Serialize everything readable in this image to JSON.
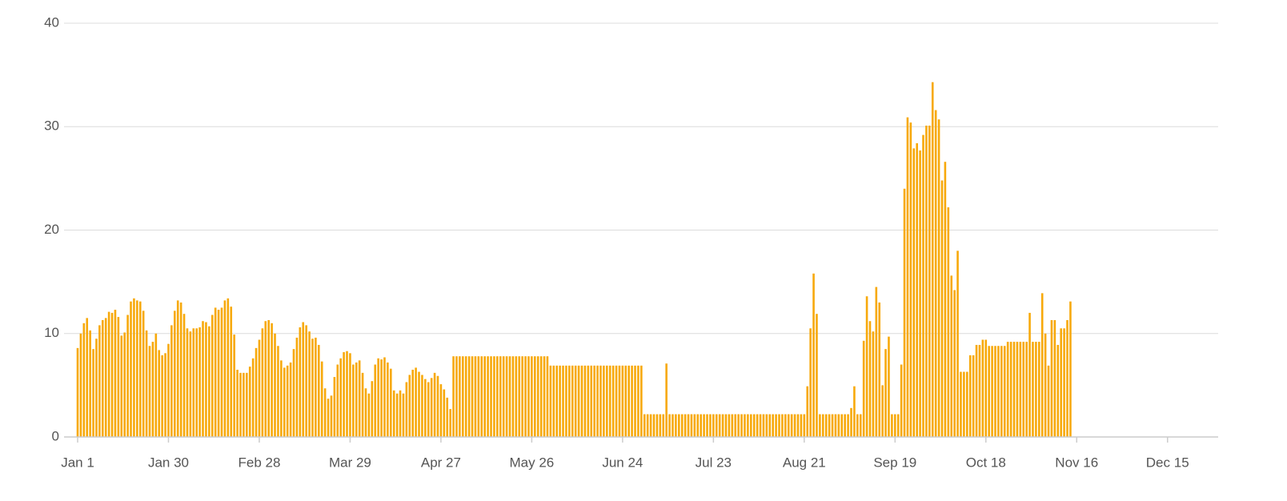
{
  "chart_data": {
    "type": "bar",
    "color": "#f7a90b",
    "grid": true,
    "ylim": [
      0,
      40
    ],
    "yticks": [
      0,
      10,
      20,
      30,
      40
    ],
    "categories": [
      "Jan 1",
      null,
      null,
      null,
      null,
      null,
      null,
      null,
      null,
      null,
      null,
      null,
      null,
      null,
      null,
      null,
      null,
      null,
      null,
      null,
      null,
      null,
      null,
      null,
      null,
      null,
      null,
      null,
      null,
      "Jan 30",
      null,
      null,
      null,
      null,
      null,
      null,
      null,
      null,
      null,
      null,
      null,
      null,
      null,
      null,
      null,
      null,
      null,
      null,
      null,
      null,
      null,
      null,
      null,
      null,
      null,
      null,
      null,
      null,
      "Feb 28",
      null,
      null,
      null,
      null,
      null,
      null,
      null,
      null,
      null,
      null,
      null,
      null,
      null,
      null,
      null,
      null,
      null,
      null,
      null,
      null,
      null,
      null,
      null,
      null,
      null,
      null,
      null,
      null,
      "Mar 29",
      null,
      null,
      null,
      null,
      null,
      null,
      null,
      null,
      null,
      null,
      null,
      null,
      null,
      null,
      null,
      null,
      null,
      null,
      null,
      null,
      null,
      null,
      null,
      null,
      null,
      null,
      null,
      null,
      "Apr 27",
      null,
      null,
      null,
      null,
      null,
      null,
      null,
      null,
      null,
      null,
      null,
      null,
      null,
      null,
      null,
      null,
      null,
      null,
      null,
      null,
      null,
      null,
      null,
      null,
      null,
      null,
      null,
      null,
      "May 26",
      null,
      null,
      null,
      null,
      null,
      null,
      null,
      null,
      null,
      null,
      null,
      null,
      null,
      null,
      null,
      null,
      null,
      null,
      null,
      null,
      null,
      null,
      null,
      null,
      null,
      null,
      null,
      null,
      "Jun 24",
      null,
      null,
      null,
      null,
      null,
      null,
      null,
      null,
      null,
      null,
      null,
      null,
      null,
      null,
      null,
      null,
      null,
      null,
      null,
      null,
      null,
      null,
      null,
      null,
      null,
      null,
      null,
      null,
      "Jul 23",
      null,
      null,
      null,
      null,
      null,
      null,
      null,
      null,
      null,
      null,
      null,
      null,
      null,
      null,
      null,
      null,
      null,
      null,
      null,
      null,
      null,
      null,
      null,
      null,
      null,
      null,
      null,
      null,
      "Aug 21",
      null,
      null,
      null,
      null,
      null,
      null,
      null,
      null,
      null,
      null,
      null,
      null,
      null,
      null,
      null,
      null,
      null,
      null,
      null,
      null,
      null,
      null,
      null,
      null,
      null,
      null,
      null,
      null,
      "Sep 19",
      null,
      null,
      null,
      null,
      null,
      null,
      null,
      null,
      null,
      null,
      null,
      null,
      null,
      null,
      null,
      null,
      null,
      null,
      null,
      null,
      null,
      null,
      null,
      null,
      null,
      null,
      null,
      null,
      "Oct 18",
      null,
      null,
      null,
      null,
      null,
      null,
      null,
      null,
      null,
      null,
      null,
      null,
      null,
      null,
      null,
      null,
      null,
      null,
      null,
      null,
      null,
      null,
      null,
      null,
      null,
      null,
      null,
      null,
      "Nov 16",
      null,
      null,
      null,
      null,
      null,
      null,
      null,
      null,
      null,
      null,
      null,
      null,
      null,
      null,
      null,
      null,
      null,
      null,
      null,
      null,
      null,
      null,
      null,
      null,
      null,
      null,
      null,
      null,
      "Dec 15",
      null,
      null,
      null,
      null,
      null,
      null,
      null,
      null,
      null,
      null,
      null,
      null,
      null,
      null,
      null,
      null
    ],
    "values": [
      8.6,
      10,
      11,
      11.5,
      10.3,
      8.5,
      9.5,
      10.8,
      11.3,
      11.5,
      12.1,
      12,
      12.3,
      11.6,
      9.8,
      10.1,
      11.8,
      13.1,
      13.4,
      13.2,
      13.1,
      12.2,
      10.3,
      8.8,
      9.2,
      10,
      8.4,
      7.9,
      8.1,
      9,
      10.8,
      12.2,
      13.2,
      13,
      11.9,
      10.5,
      10.2,
      10.5,
      10.5,
      10.6,
      11.2,
      11.1,
      10.7,
      11.8,
      12.5,
      12.3,
      12.5,
      13.2,
      13.4,
      12.6,
      9.9,
      6.5,
      6.2,
      6.2,
      6.2,
      6.8,
      7.6,
      8.6,
      9.4,
      10.5,
      11.2,
      11.3,
      11,
      10,
      8.8,
      7.4,
      6.7,
      6.9,
      7.2,
      8.5,
      9.6,
      10.6,
      11.1,
      10.8,
      10.2,
      9.5,
      9.6,
      8.9,
      7.3,
      4.7,
      3.7,
      4.0,
      5.8,
      7.0,
      7.6,
      8.2,
      8.3,
      8.1,
      7.0,
      7.2,
      7.4,
      6.2,
      4.7,
      4.2,
      5.4,
      7.0,
      7.6,
      7.5,
      7.7,
      7.2,
      6.6,
      4.5,
      4.2,
      4.5,
      4.2,
      5.3,
      6.0,
      6.5,
      6.7,
      6.3,
      6.0,
      5.6,
      5.3,
      5.7,
      6.2,
      5.9,
      5.1,
      4.6,
      3.8,
      2.7,
      7.8,
      7.8,
      7.8,
      7.8,
      7.8,
      7.8,
      7.8,
      7.8,
      7.8,
      7.8,
      7.8,
      7.8,
      7.8,
      7.8,
      7.8,
      7.8,
      7.8,
      7.8,
      7.8,
      7.8,
      7.8,
      7.8,
      7.8,
      7.8,
      7.8,
      7.8,
      7.8,
      7.8,
      7.8,
      7.8,
      7.8,
      6.9,
      6.9,
      6.9,
      6.9,
      6.9,
      6.9,
      6.9,
      6.9,
      6.9,
      6.9,
      6.9,
      6.9,
      6.9,
      6.9,
      6.9,
      6.9,
      6.9,
      6.9,
      6.9,
      6.9,
      6.9,
      6.9,
      6.9,
      6.9,
      6.9,
      6.9,
      6.9,
      6.9,
      6.9,
      6.9,
      2.2,
      2.2,
      2.2,
      2.2,
      2.2,
      2.2,
      2.2,
      7.1,
      2.2,
      2.2,
      2.2,
      2.2,
      2.2,
      2.2,
      2.2,
      2.2,
      2.2,
      2.2,
      2.2,
      2.2,
      2.2,
      2.2,
      2.2,
      2.2,
      2.2,
      2.2,
      2.2,
      2.2,
      2.2,
      2.2,
      2.2,
      2.2,
      2.2,
      2.2,
      2.2,
      2.2,
      2.2,
      2.2,
      2.2,
      2.2,
      2.2,
      2.2,
      2.2,
      2.2,
      2.2,
      2.2,
      2.2,
      2.2,
      2.2,
      2.2,
      2.2,
      2.2,
      4.9,
      10.5,
      15.8,
      11.9,
      2.2,
      2.2,
      2.2,
      2.2,
      2.2,
      2.2,
      2.2,
      2.2,
      2.2,
      2.2,
      2.8,
      4.9,
      2.2,
      2.2,
      9.3,
      13.6,
      11.2,
      10.2,
      14.5,
      13.0,
      5.0,
      8.5,
      9.7,
      2.2,
      2.2,
      2.2,
      7.0,
      24.0,
      30.9,
      30.4,
      27.9,
      28.4,
      27.7,
      29.2,
      30.1,
      30.1,
      34.3,
      31.6,
      30.7,
      24.8,
      26.6,
      22.2,
      15.6,
      14.2,
      18.0,
      6.3,
      6.3,
      6.3,
      7.9,
      7.9,
      8.9,
      8.9,
      9.4,
      9.4,
      8.8,
      8.8,
      8.8,
      8.8,
      8.8,
      8.8,
      9.2,
      9.2,
      9.2,
      9.2,
      9.2,
      9.2,
      9.2,
      12.0,
      9.2,
      9.2,
      9.2,
      13.9,
      10.0,
      6.9,
      11.3,
      11.3,
      8.9,
      10.5,
      10.5,
      11.3,
      13.1,
      null,
      null,
      null,
      null,
      null,
      null,
      null,
      null,
      null,
      null,
      null,
      null,
      null,
      null,
      null,
      null,
      null,
      null,
      null,
      null,
      null,
      null,
      null,
      null,
      null,
      null,
      null,
      null,
      null,
      null,
      null,
      null,
      null,
      null,
      null,
      null,
      null,
      null,
      null,
      null,
      null,
      null,
      null,
      null,
      null,
      null,
      null
    ]
  }
}
